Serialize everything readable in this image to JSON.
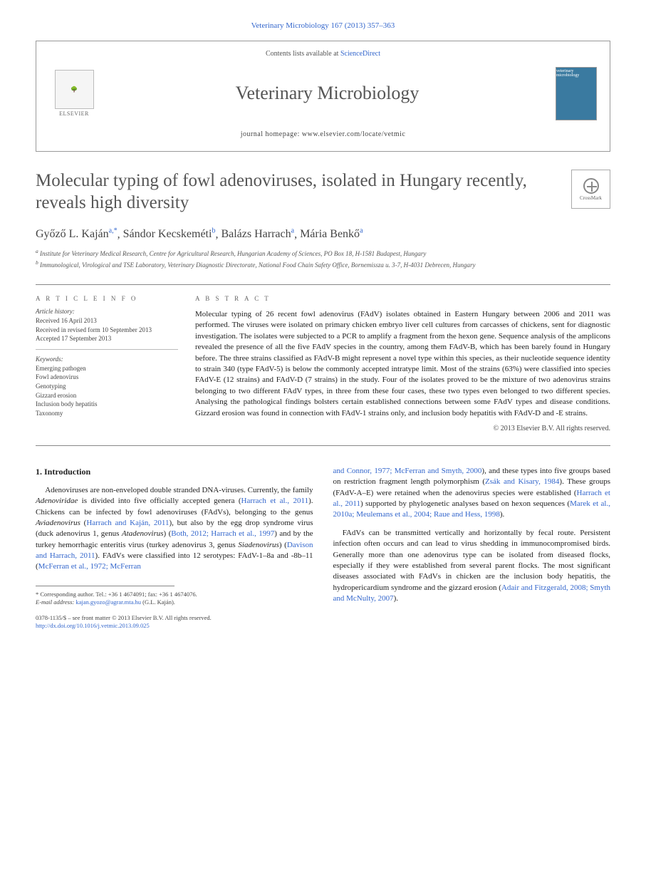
{
  "topCitation": "Veterinary Microbiology 167 (2013) 357–363",
  "header": {
    "contentsPrefix": "Contents lists available at ",
    "contentsLink": "ScienceDirect",
    "publisherLogoText": "ELSEVIER",
    "journalTitle": "Veterinary Microbiology",
    "homepagePrefix": "journal homepage: ",
    "homepageUrl": "www.elsevier.com/locate/vetmic",
    "coverLabel": "veterinary microbiology"
  },
  "article": {
    "title": "Molecular typing of fowl adenoviruses, isolated in Hungary recently, reveals high diversity",
    "crossmarkLabel": "CrossMark",
    "authors": [
      {
        "name": "Győző L. Kaján",
        "sup": "a,*"
      },
      {
        "name": "Sándor Kecskeméti",
        "sup": "b"
      },
      {
        "name": "Balázs Harrach",
        "sup": "a"
      },
      {
        "name": "Mária Benkő",
        "sup": "a"
      }
    ],
    "affiliations": [
      {
        "sup": "a",
        "text": "Institute for Veterinary Medical Research, Centre for Agricultural Research, Hungarian Academy of Sciences, PO Box 18, H-1581 Budapest, Hungary"
      },
      {
        "sup": "b",
        "text": "Immunological, Virological and TSE Laboratory, Veterinary Diagnostic Directorate, National Food Chain Safety Office, Bornemissza u. 3-7, H-4031 Debrecen, Hungary"
      }
    ]
  },
  "info": {
    "heading": "A R T I C L E  I N F O",
    "historyLabel": "Article history:",
    "history": [
      "Received 16 April 2013",
      "Received in revised form 10 September 2013",
      "Accepted 17 September 2013"
    ],
    "keywordsLabel": "Keywords:",
    "keywords": [
      "Emerging pathogen",
      "Fowl adenovirus",
      "Genotyping",
      "Gizzard erosion",
      "Inclusion body hepatitis",
      "Taxonomy"
    ]
  },
  "abstract": {
    "heading": "A B S T R A C T",
    "text": "Molecular typing of 26 recent fowl adenovirus (FAdV) isolates obtained in Eastern Hungary between 2006 and 2011 was performed. The viruses were isolated on primary chicken embryo liver cell cultures from carcasses of chickens, sent for diagnostic investigation. The isolates were subjected to a PCR to amplify a fragment from the hexon gene. Sequence analysis of the amplicons revealed the presence of all the five FAdV species in the country, among them FAdV-B, which has been barely found in Hungary before. The three strains classified as FAdV-B might represent a novel type within this species, as their nucleotide sequence identity to strain 340 (type FAdV-5) is below the commonly accepted intratype limit. Most of the strains (63%) were classified into species FAdV-E (12 strains) and FAdV-D (7 strains) in the study. Four of the isolates proved to be the mixture of two adenovirus strains belonging to two different FAdV types, in three from these four cases, these two types even belonged to two different species. Analysing the pathological findings bolsters certain established connections between some FAdV types and disease conditions. Gizzard erosion was found in connection with FAdV-1 strains only, and inclusion body hepatitis with FAdV-D and -E strains.",
    "copyright": "© 2013 Elsevier B.V. All rights reserved."
  },
  "body": {
    "sectionNumber": "1.",
    "sectionTitle": "Introduction",
    "col1p1_a": "Adenoviruses are non-enveloped double stranded DNA-viruses. Currently, the family ",
    "col1p1_i1": "Adenoviridae",
    "col1p1_b": " is divided into five officially accepted genera (",
    "col1p1_c1": "Harrach et al., 2011",
    "col1p1_c": "). Chickens can be infected by fowl adenoviruses (FAdVs), belonging to the genus ",
    "col1p1_i2": "Aviadenovirus",
    "col1p1_d": " (",
    "col1p1_c2": "Harrach and Kaján, 2011",
    "col1p1_e": "), but also by the egg drop syndrome virus (duck adenovirus 1, genus ",
    "col1p1_i3": "Atadenovirus",
    "col1p1_f": ") (",
    "col1p1_c3": "Both, 2012; Harrach et al., 1997",
    "col1p1_g": ") and by the turkey hemorrhagic enteritis virus (turkey adenovirus 3, genus ",
    "col1p1_i4": "Siadenovirus",
    "col1p1_h": ") (",
    "col1p1_c4": "Davison and Harrach, 2011",
    "col1p1_i": "). FAdVs were classified into 12 serotypes: FAdV-1–8a and -8b–11 (",
    "col1p1_c5": "McFerran et al., 1972; McFerran",
    "col2p1_c1": "and Connor, 1977; McFerran and Smyth, 2000",
    "col2p1_a": "), and these types into five groups based on restriction fragment length polymorphism (",
    "col2p1_c2": "Zsák and Kisary, 1984",
    "col2p1_b": "). These groups (FAdV-A–E) were retained when the adenovirus species were established (",
    "col2p1_c3": "Harrach et al., 2011",
    "col2p1_c": ") supported by phylogenetic analyses based on hexon sequences (",
    "col2p1_c4": "Marek et al., 2010a; Meulemans et al., 2004; Raue and Hess, 1998",
    "col2p1_d": ").",
    "col2p2_a": "FAdVs can be transmitted vertically and horizontally by fecal route. Persistent infection often occurs and can lead to virus shedding in immunocompromised birds. Generally more than one adenovirus type can be isolated from diseased flocks, especially if they were established from several parent flocks. The most significant diseases associated with FAdVs in chicken are the inclusion body hepatitis, the hydropericardium syndrome and the gizzard erosion (",
    "col2p2_c1": "Adair and Fitzgerald, 2008; Smyth and McNulty, 2007",
    "col2p2_b": ")."
  },
  "footnote": {
    "corr": "* Corresponding author. Tel.: +36 1 4674091; fax: +36 1 4674076.",
    "emailLabel": "E-mail address: ",
    "email": "kajan.gyozo@agrar.mta.hu",
    "emailSuffix": " (G.L. Kaján)."
  },
  "bottom": {
    "issn": "0378-1135/$ – see front matter © 2013 Elsevier B.V. All rights reserved.",
    "doiPrefix": "http://dx.doi.org/",
    "doi": "10.1016/j.vetmic.2013.09.025"
  }
}
